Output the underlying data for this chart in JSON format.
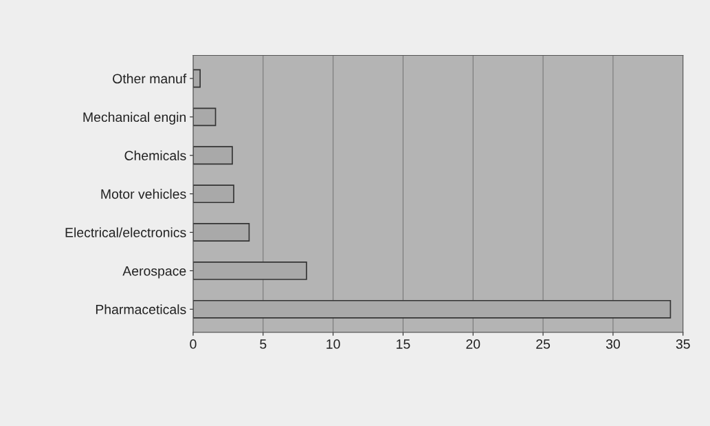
{
  "chart_data": {
    "type": "bar",
    "orientation": "horizontal",
    "categories": [
      "Other manuf",
      "Mechanical engin",
      "Chemicals",
      "Motor vehicles",
      "Electrical/electronics",
      "Aerospace",
      "Pharmaceticals"
    ],
    "values": [
      0.5,
      1.6,
      2.8,
      2.9,
      4.0,
      8.1,
      34.1
    ],
    "color": "#a9a9a9",
    "xlim": [
      0,
      35
    ],
    "xticks": [
      0,
      5,
      10,
      15,
      20,
      25,
      30,
      35
    ],
    "grid": "x"
  }
}
